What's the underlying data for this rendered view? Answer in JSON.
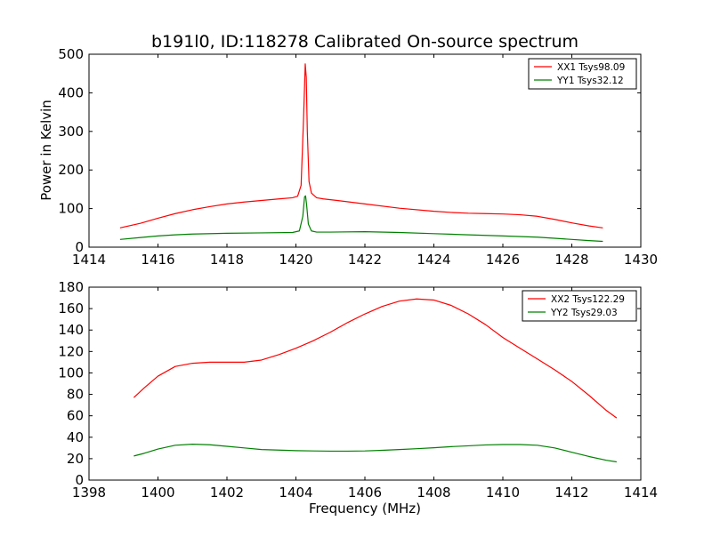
{
  "figure": {
    "title": "b191l0, ID:118278 Calibrated On-source spectrum",
    "ylabel": "Power in Kelvin",
    "xlabel": "Frequency (MHz)"
  },
  "colors": {
    "red_series": "#ff0000",
    "green_series": "#008000",
    "frame": "#000000"
  },
  "chart_data": [
    {
      "type": "line",
      "title": "b191l0, ID:118278 Calibrated On-source spectrum",
      "xlabel": "",
      "ylabel": "Power in Kelvin",
      "xlim": [
        1414,
        1430
      ],
      "ylim": [
        0,
        500
      ],
      "xticks": [
        1414,
        1416,
        1418,
        1420,
        1422,
        1424,
        1426,
        1428,
        1430
      ],
      "yticks": [
        0,
        100,
        200,
        300,
        400,
        500
      ],
      "grid": false,
      "legend_position": "top-right",
      "series": [
        {
          "name": "XX1 Tsys98.09",
          "color": "#ff0000",
          "x": [
            1414.9,
            1415.5,
            1416.0,
            1416.5,
            1417.0,
            1417.5,
            1418.0,
            1418.5,
            1419.0,
            1419.5,
            1419.9,
            1420.05,
            1420.15,
            1420.22,
            1420.27,
            1420.3,
            1420.33,
            1420.38,
            1420.45,
            1420.6,
            1420.8,
            1421.2,
            1422.0,
            1423.0,
            1424.0,
            1424.5,
            1425.0,
            1425.5,
            1426.0,
            1426.5,
            1427.0,
            1427.5,
            1428.0,
            1428.5,
            1428.9
          ],
          "y": [
            50,
            62,
            75,
            87,
            97,
            105,
            112,
            117,
            121,
            125,
            128,
            132,
            160,
            330,
            475,
            440,
            300,
            170,
            140,
            128,
            125,
            121,
            112,
            101,
            93,
            90,
            88,
            87,
            86,
            84,
            80,
            72,
            63,
            55,
            50
          ]
        },
        {
          "name": "YY1 Tsys32.12",
          "color": "#008000",
          "x": [
            1414.9,
            1415.5,
            1416.0,
            1416.5,
            1417.0,
            1418.0,
            1419.0,
            1419.9,
            1420.1,
            1420.2,
            1420.25,
            1420.28,
            1420.31,
            1420.36,
            1420.45,
            1420.6,
            1421.0,
            1422.0,
            1423.0,
            1424.0,
            1425.0,
            1426.0,
            1427.0,
            1427.5,
            1428.0,
            1428.5,
            1428.9
          ],
          "y": [
            20,
            25,
            29,
            32,
            34,
            36,
            37,
            38,
            42,
            80,
            130,
            133,
            110,
            60,
            42,
            39,
            39,
            40,
            38,
            35,
            32,
            29,
            26,
            23,
            20,
            17,
            15
          ]
        }
      ]
    },
    {
      "type": "line",
      "title": "",
      "xlabel": "Frequency (MHz)",
      "ylabel": "",
      "xlim": [
        1398,
        1414
      ],
      "ylim": [
        0,
        180
      ],
      "xticks": [
        1398,
        1400,
        1402,
        1404,
        1406,
        1408,
        1410,
        1412,
        1414
      ],
      "yticks": [
        0,
        20,
        40,
        60,
        80,
        100,
        120,
        140,
        160,
        180
      ],
      "grid": false,
      "legend_position": "top-right",
      "series": [
        {
          "name": "XX2 Tsys122.29",
          "color": "#ff0000",
          "x": [
            1399.3,
            1399.6,
            1400.0,
            1400.5,
            1401.0,
            1401.5,
            1402.0,
            1402.5,
            1403.0,
            1403.5,
            1404.0,
            1404.5,
            1405.0,
            1405.5,
            1406.0,
            1406.5,
            1407.0,
            1407.5,
            1408.0,
            1408.5,
            1409.0,
            1409.5,
            1410.0,
            1410.5,
            1411.0,
            1411.5,
            1412.0,
            1412.5,
            1413.0,
            1413.3
          ],
          "y": [
            77,
            86,
            97,
            106,
            109,
            110,
            110,
            110,
            112,
            117,
            123,
            130,
            138,
            147,
            155,
            162,
            167,
            169,
            168,
            163,
            155,
            145,
            133,
            123,
            113,
            103,
            92,
            79,
            65,
            58
          ]
        },
        {
          "name": "YY2 Tsys29.03",
          "color": "#008000",
          "x": [
            1399.3,
            1399.6,
            1400.0,
            1400.5,
            1401.0,
            1401.5,
            1402.0,
            1402.5,
            1403.0,
            1403.5,
            1404.0,
            1404.5,
            1405.0,
            1405.5,
            1406.0,
            1406.5,
            1407.0,
            1407.5,
            1408.0,
            1408.5,
            1409.0,
            1409.5,
            1410.0,
            1410.5,
            1411.0,
            1411.5,
            1412.0,
            1412.5,
            1413.0,
            1413.3
          ],
          "y": [
            22.5,
            25,
            29,
            32.5,
            33.5,
            33,
            31.5,
            30,
            28.5,
            28,
            27.5,
            27.2,
            27,
            27,
            27.2,
            27.8,
            28.5,
            29.3,
            30.2,
            31.2,
            32,
            32.8,
            33.2,
            33.2,
            32.5,
            30,
            26,
            22,
            18.5,
            17
          ]
        }
      ]
    }
  ]
}
